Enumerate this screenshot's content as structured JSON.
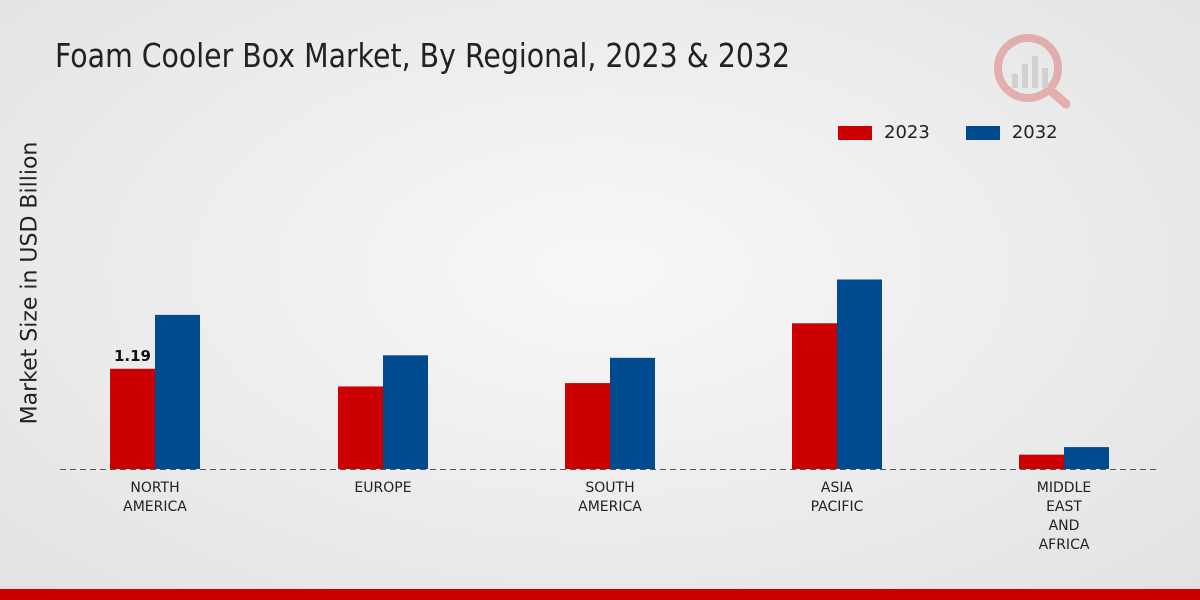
{
  "colors": {
    "2023": "#cc0000",
    "2032": "#004a8f"
  },
  "chart_data": {
    "type": "bar",
    "title": "Foam Cooler Box Market, By Regional, 2023 & 2032",
    "ylabel": "Market Size in USD Billion",
    "xlabel": "",
    "categories": [
      [
        "NORTH",
        "AMERICA"
      ],
      [
        "EUROPE"
      ],
      [
        "SOUTH",
        "AMERICA"
      ],
      [
        "ASIA",
        "PACIFIC"
      ],
      [
        "MIDDLE",
        "EAST",
        "AND",
        "AFRICA"
      ]
    ],
    "series": [
      {
        "name": "2023",
        "values": [
          1.19,
          0.98,
          1.02,
          1.73,
          0.17
        ]
      },
      {
        "name": "2032",
        "values": [
          1.83,
          1.35,
          1.32,
          2.25,
          0.26
        ]
      }
    ],
    "data_labels": [
      {
        "series": 0,
        "index": 0,
        "text": "1.19"
      }
    ],
    "ylim": [
      0,
      4.5
    ],
    "grid": false,
    "legend_position": "top-right"
  }
}
